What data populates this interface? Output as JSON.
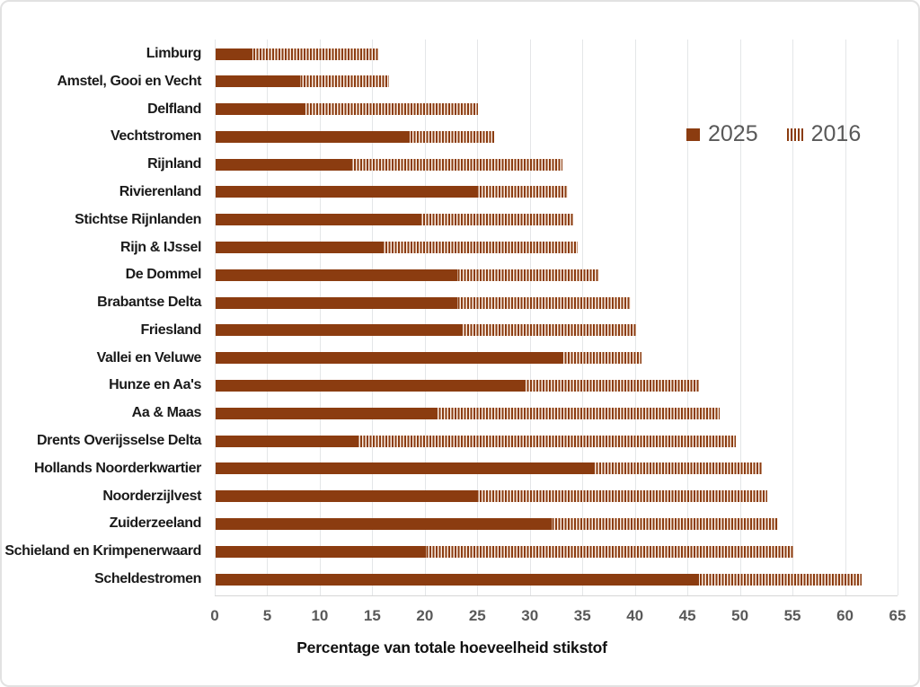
{
  "chart_data": {
    "type": "bar",
    "orientation": "horizontal",
    "title": "",
    "xlabel": "Percentage van totale hoeveelheid stikstof",
    "xlim": [
      0,
      65
    ],
    "xticks": [
      0,
      5,
      10,
      15,
      20,
      25,
      30,
      35,
      40,
      45,
      50,
      55,
      60,
      65
    ],
    "grid": "vertical",
    "legend_position": "inside-top-right",
    "categories": [
      "Limburg",
      "Amstel, Gooi en Vecht",
      "Delfland",
      "Vechtstromen",
      "Rijnland",
      "Rivierenland",
      "Stichtse Rijnlanden",
      "Rijn & IJssel",
      "De Dommel",
      "Brabantse Delta",
      "Friesland",
      "Vallei en Veluwe",
      "Hunze en Aa's",
      "Aa & Maas",
      "Drents Overijsselse Delta",
      "Hollands Noorderkwartier",
      "Noorderzijlvest",
      "Zuiderzeeland",
      "Schieland en Krimpenerwaard",
      "Scheldestromen"
    ],
    "series": [
      {
        "name": "2025",
        "style": "solid",
        "values": [
          3.5,
          8,
          8.5,
          18.5,
          13,
          25,
          19.5,
          16,
          23,
          23,
          23.5,
          33,
          29.5,
          21,
          13.5,
          36,
          25,
          32,
          20,
          46
        ]
      },
      {
        "name": "2016",
        "style": "striped",
        "values": [
          15.5,
          16.5,
          25,
          26.5,
          33,
          33.5,
          34,
          34.5,
          36.5,
          39.5,
          40,
          40.5,
          46,
          48,
          49.5,
          52,
          52.5,
          53.5,
          55,
          61.5
        ]
      }
    ]
  },
  "colors": {
    "bar_brown": "#8B3C10",
    "stripe_gap": "#FAEFE7",
    "gridline": "#E4E6E8",
    "axis_line": "#D6D6D6",
    "tick_text": "#595959",
    "category_text": "#1A1A1A",
    "legend_text": "#595959",
    "chart_border": "#E2E2E2"
  }
}
